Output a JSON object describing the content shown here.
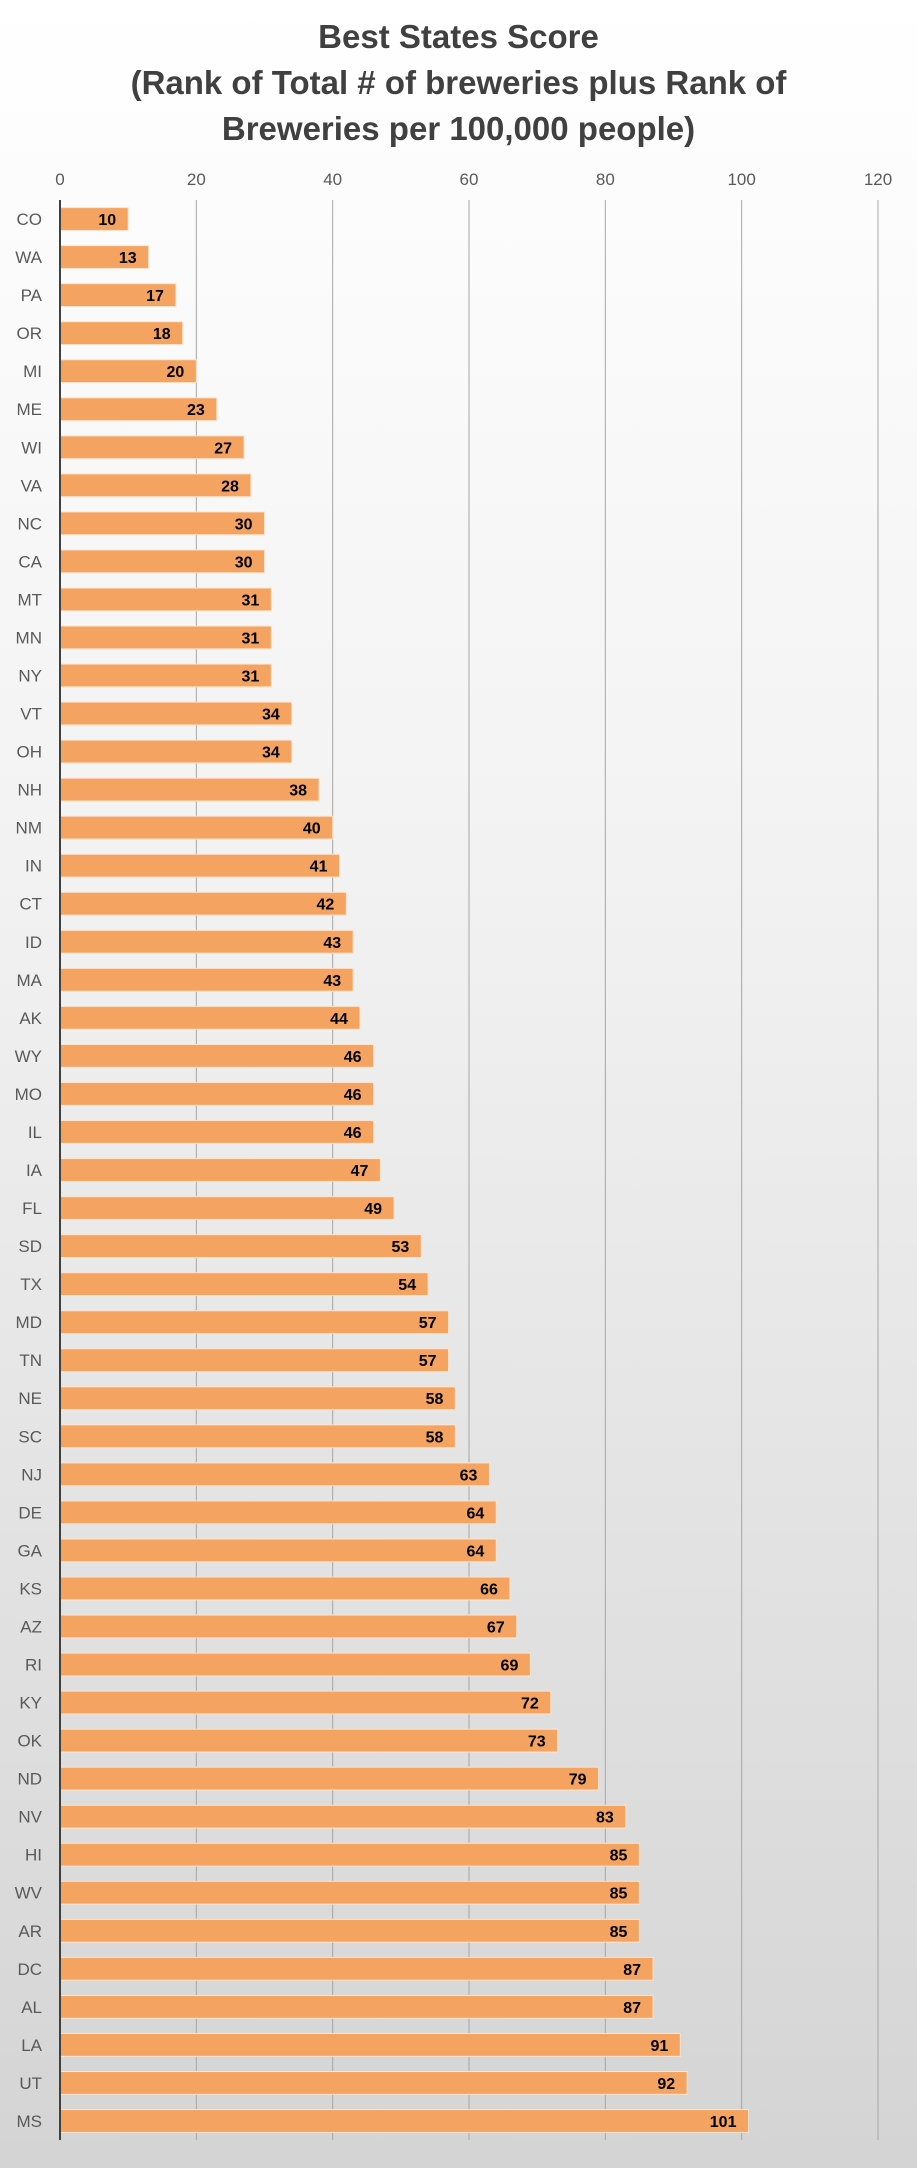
{
  "chart_data": {
    "type": "bar",
    "orientation": "horizontal",
    "title_lines": [
      "Best States Score",
      "(Rank of Total # of breweries plus Rank of",
      "Breweries per 100,000 people)"
    ],
    "categories": [
      "CO",
      "WA",
      "PA",
      "OR",
      "MI",
      "ME",
      "WI",
      "VA",
      "NC",
      "CA",
      "MT",
      "MN",
      "NY",
      "VT",
      "OH",
      "NH",
      "NM",
      "IN",
      "CT",
      "ID",
      "MA",
      "AK",
      "WY",
      "MO",
      "IL",
      "IA",
      "FL",
      "SD",
      "TX",
      "MD",
      "TN",
      "NE",
      "SC",
      "NJ",
      "DE",
      "GA",
      "KS",
      "AZ",
      "RI",
      "KY",
      "OK",
      "ND",
      "NV",
      "HI",
      "WV",
      "AR",
      "DC",
      "AL",
      "LA",
      "UT",
      "MS"
    ],
    "values": [
      10,
      13,
      17,
      18,
      20,
      23,
      27,
      28,
      30,
      30,
      31,
      31,
      31,
      34,
      34,
      38,
      40,
      41,
      42,
      43,
      43,
      44,
      46,
      46,
      46,
      47,
      49,
      53,
      54,
      57,
      57,
      58,
      58,
      63,
      64,
      64,
      66,
      67,
      69,
      72,
      73,
      79,
      83,
      85,
      85,
      85,
      87,
      87,
      91,
      92,
      101
    ],
    "xlim": [
      0,
      120
    ],
    "xticks": [
      0,
      20,
      40,
      60,
      80,
      100,
      120
    ],
    "grid": true,
    "axis_position": "top",
    "data_labels": true,
    "bar_color": "#F4A460",
    "bar_border_color": "#fde3cf"
  }
}
